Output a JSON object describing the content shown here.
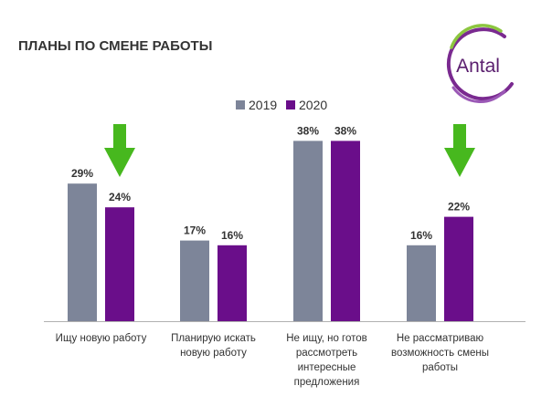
{
  "title": "ПЛАНЫ ПО СМЕНЕ РАБОТЫ",
  "logo": {
    "text": "Antal"
  },
  "colors": {
    "series_2019": "#7d8599",
    "series_2020": "#6a0e8a",
    "arrow": "#47b81e",
    "axis": "#b0b0b0",
    "text": "#333333"
  },
  "highlight_arrows": [
    "down-arrow-icon",
    "down-arrow-icon"
  ],
  "chart_data": {
    "type": "bar",
    "title": "ПЛАНЫ ПО СМЕНЕ РАБОТЫ",
    "legend_position": "top",
    "ylim": [
      0,
      40
    ],
    "grid": false,
    "categories": [
      [
        "Ищу новую работу"
      ],
      [
        "Планирую искать",
        "новую работу"
      ],
      [
        "Не ищу, но готов",
        "рассмотреть",
        "интересные",
        "предложения"
      ],
      [
        "Не рассматриваю",
        "возможность смены",
        "работы"
      ]
    ],
    "series": [
      {
        "name": "2019",
        "values": [
          29,
          17,
          38,
          16
        ],
        "labels": [
          "29%",
          "17%",
          "38%",
          "16%"
        ]
      },
      {
        "name": "2020",
        "values": [
          24,
          16,
          38,
          22
        ],
        "labels": [
          "24%",
          "16%",
          "38%",
          "22%"
        ]
      }
    ]
  }
}
